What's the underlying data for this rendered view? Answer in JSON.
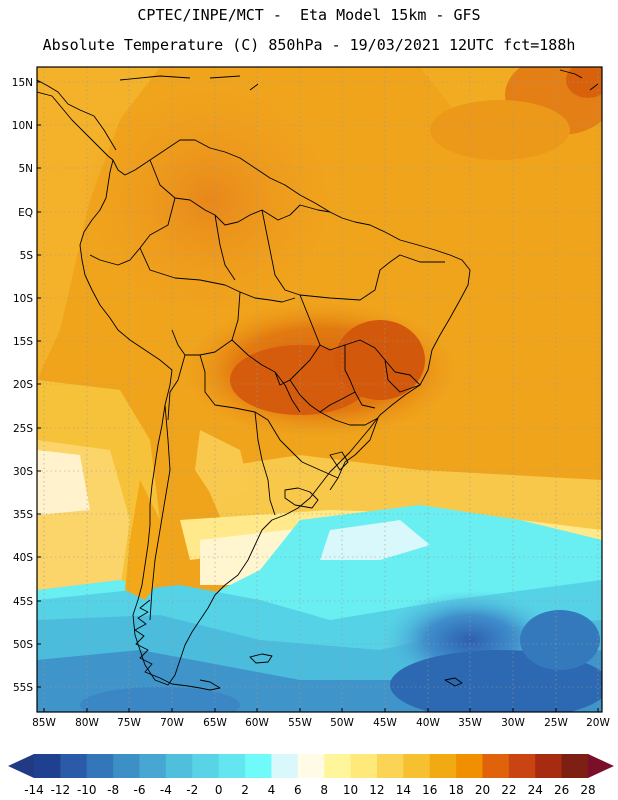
{
  "header": {
    "line1": "CPTEC/INPE/MCT -  Eta Model 15km - GFS",
    "line2": "Absolute Temperature (C) 850hPa - 19/03/2021 12UTC fct=188h"
  },
  "map": {
    "lat_labels": [
      "15N",
      "10N",
      "5N",
      "EQ",
      "5S",
      "10S",
      "15S",
      "20S",
      "25S",
      "30S",
      "35S",
      "40S",
      "45S",
      "50S",
      "55S"
    ],
    "lon_labels": [
      "85W",
      "80W",
      "75W",
      "70W",
      "65W",
      "60W",
      "55W",
      "50W",
      "45W",
      "40W",
      "35W",
      "30W",
      "25W",
      "20W"
    ]
  },
  "colorbar": {
    "labels": [
      "-14",
      "-12",
      "-10",
      "-8",
      "-6",
      "-4",
      "-2",
      "0",
      "2",
      "4",
      "6",
      "8",
      "10",
      "12",
      "14",
      "16",
      "18",
      "20",
      "22",
      "24",
      "26",
      "28"
    ],
    "colors": [
      "#1f3f8f",
      "#2b5ba8",
      "#3476ba",
      "#3d90c6",
      "#47a7d2",
      "#4fbfdc",
      "#58d4e6",
      "#63e6ef",
      "#70fafa",
      "#d8f8fb",
      "#fffbe6",
      "#fff59a",
      "#ffe97a",
      "#fcd455",
      "#f6c030",
      "#f2aa12",
      "#f09000",
      "#e0620b",
      "#c94412",
      "#a62b10",
      "#7e1f14"
    ],
    "under_color": "#203a84",
    "over_color": "#7a0f2a"
  }
}
